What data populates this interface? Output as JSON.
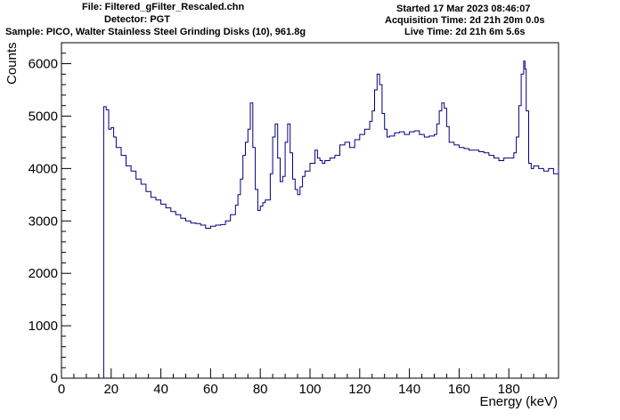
{
  "header": {
    "file": "File: Filtered_gFilter_Rescaled.chn",
    "detector": "Detector: PGT",
    "sample": "Sample: PICO, Walter Stainless Steel Grinding Disks (10), 961.8g",
    "started": "Started 17 Mar 2023 08:46:07",
    "acquisition": "Acquisition Time: 2d 21h 20m 0.0s",
    "live": "Live Time: 2d 21h 6m 5.6s"
  },
  "colors": {
    "series": "#000080",
    "axis": "#000000",
    "background": "#ffffff"
  },
  "chart_data": {
    "type": "line",
    "xlabel": "Energy (keV)",
    "ylabel": "Counts",
    "xlim": [
      0,
      200
    ],
    "ylim": [
      0,
      6400
    ],
    "xticks": [
      0,
      20,
      40,
      60,
      80,
      100,
      120,
      140,
      160,
      180
    ],
    "yticks": [
      0,
      1000,
      2000,
      3000,
      4000,
      5000,
      6000
    ],
    "grid": false,
    "series": [
      {
        "x": [
          16.5,
          17,
          18,
          19,
          20,
          21,
          22,
          24,
          26,
          28,
          30,
          32,
          34,
          36,
          38,
          40,
          42,
          44,
          46,
          48,
          50,
          52,
          54,
          56,
          58,
          60,
          62,
          64,
          66,
          68,
          70,
          71,
          72,
          73,
          74,
          75,
          76,
          77,
          78,
          79,
          80,
          81,
          82,
          84,
          85,
          86,
          87,
          88,
          89,
          90,
          91,
          92,
          93,
          94,
          95,
          96,
          97,
          98,
          100,
          102,
          103,
          104,
          105,
          106,
          108,
          110,
          112,
          114,
          116,
          118,
          120,
          122,
          124,
          125,
          126,
          127,
          128,
          129,
          130,
          131,
          132,
          134,
          136,
          138,
          140,
          142,
          144,
          146,
          148,
          150,
          151,
          152,
          153,
          154,
          155,
          156,
          158,
          160,
          162,
          164,
          166,
          168,
          170,
          172,
          174,
          176,
          178,
          180,
          182,
          183,
          184,
          185,
          186,
          186.5,
          187,
          188,
          189,
          190,
          192,
          194,
          196,
          198,
          200
        ],
        "y": [
          0,
          5180,
          5120,
          4750,
          4780,
          4600,
          4400,
          4250,
          4050,
          3950,
          3800,
          3700,
          3560,
          3450,
          3400,
          3320,
          3250,
          3180,
          3120,
          3050,
          3000,
          2960,
          2950,
          2920,
          2860,
          2900,
          2920,
          2930,
          3000,
          3120,
          3300,
          3500,
          3800,
          4250,
          4500,
          4750,
          5250,
          4400,
          3600,
          3200,
          3280,
          3350,
          3400,
          3900,
          4600,
          4850,
          4200,
          3750,
          3850,
          4500,
          4850,
          4300,
          3800,
          3600,
          3500,
          3650,
          3850,
          3950,
          4100,
          4350,
          4200,
          4150,
          4100,
          4150,
          4200,
          4250,
          4450,
          4500,
          4400,
          4550,
          4650,
          4750,
          4900,
          5100,
          5500,
          5800,
          5600,
          5050,
          4750,
          4600,
          4620,
          4680,
          4700,
          4650,
          4700,
          4720,
          4650,
          4600,
          4620,
          4650,
          4850,
          5100,
          5250,
          5150,
          4800,
          4500,
          4450,
          4400,
          4380,
          4350,
          4350,
          4320,
          4300,
          4250,
          4200,
          4150,
          4200,
          4200,
          4300,
          4600,
          5200,
          5800,
          6050,
          5900,
          5100,
          4100,
          4000,
          4050,
          4000,
          3950,
          4000,
          3900,
          4050
        ]
      }
    ]
  }
}
